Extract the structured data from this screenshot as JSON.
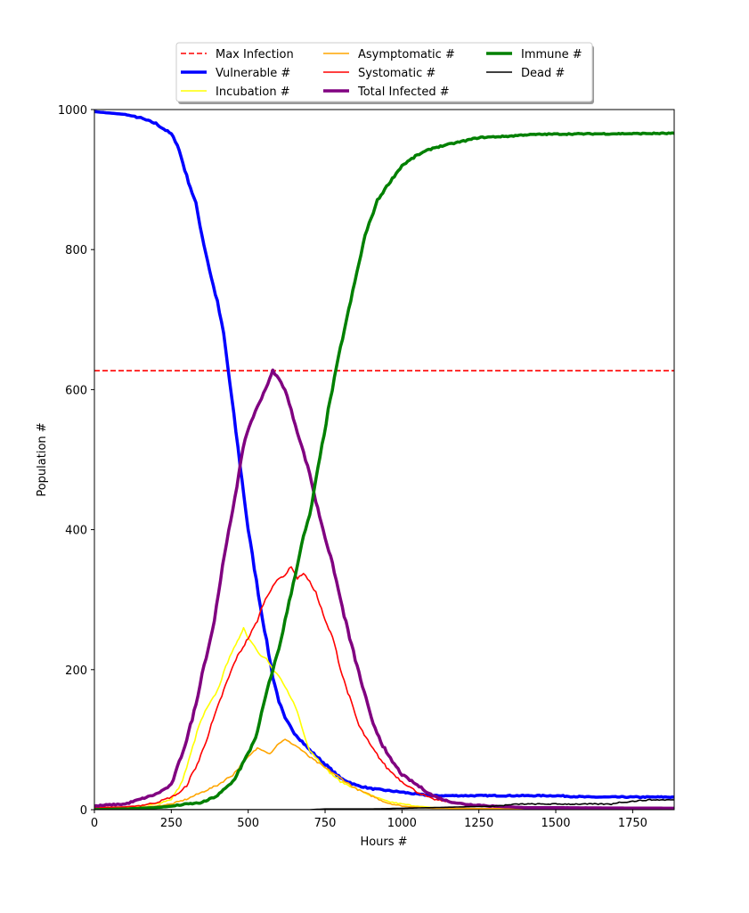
{
  "chart_data": {
    "type": "line",
    "xlabel": "Hours #",
    "ylabel": "Population #",
    "xlim": [
      0,
      1885
    ],
    "ylim": [
      0,
      1000
    ],
    "xticks": [
      0,
      250,
      500,
      750,
      1000,
      1250,
      1500,
      1750
    ],
    "yticks": [
      0,
      200,
      400,
      600,
      800,
      1000
    ],
    "grid": false,
    "legend_position": "top-center",
    "hlines": [
      {
        "name": "Max Infection",
        "y": 627,
        "color": "#ff0000",
        "style": "dashed"
      }
    ],
    "series": [
      {
        "name": "Vulnerable #",
        "color": "#0000ff",
        "width": "thick",
        "points": [
          [
            0,
            997
          ],
          [
            50,
            995
          ],
          [
            100,
            993
          ],
          [
            150,
            988
          ],
          [
            200,
            980
          ],
          [
            250,
            965
          ],
          [
            270,
            950
          ],
          [
            300,
            905
          ],
          [
            330,
            865
          ],
          [
            350,
            820
          ],
          [
            380,
            760
          ],
          [
            400,
            725
          ],
          [
            420,
            680
          ],
          [
            440,
            610
          ],
          [
            460,
            540
          ],
          [
            480,
            470
          ],
          [
            500,
            400
          ],
          [
            520,
            345
          ],
          [
            540,
            290
          ],
          [
            560,
            240
          ],
          [
            580,
            190
          ],
          [
            600,
            155
          ],
          [
            620,
            130
          ],
          [
            650,
            110
          ],
          [
            700,
            85
          ],
          [
            750,
            65
          ],
          [
            800,
            45
          ],
          [
            850,
            35
          ],
          [
            900,
            30
          ],
          [
            1000,
            25
          ],
          [
            1050,
            22
          ],
          [
            1100,
            20
          ],
          [
            1200,
            20
          ],
          [
            1500,
            20
          ],
          [
            1600,
            18
          ],
          [
            1885,
            18
          ]
        ]
      },
      {
        "name": "Incubation #",
        "color": "#ffff00",
        "width": "thin",
        "points": [
          [
            0,
            2
          ],
          [
            100,
            3
          ],
          [
            200,
            8
          ],
          [
            250,
            15
          ],
          [
            280,
            35
          ],
          [
            300,
            60
          ],
          [
            320,
            90
          ],
          [
            340,
            120
          ],
          [
            360,
            140
          ],
          [
            380,
            155
          ],
          [
            400,
            170
          ],
          [
            420,
            195
          ],
          [
            440,
            220
          ],
          [
            460,
            235
          ],
          [
            475,
            250
          ],
          [
            485,
            260
          ],
          [
            500,
            245
          ],
          [
            520,
            235
          ],
          [
            540,
            220
          ],
          [
            560,
            215
          ],
          [
            580,
            200
          ],
          [
            600,
            190
          ],
          [
            620,
            175
          ],
          [
            640,
            160
          ],
          [
            660,
            140
          ],
          [
            680,
            110
          ],
          [
            700,
            85
          ],
          [
            720,
            75
          ],
          [
            740,
            65
          ],
          [
            760,
            55
          ],
          [
            800,
            40
          ],
          [
            850,
            30
          ],
          [
            900,
            20
          ],
          [
            950,
            12
          ],
          [
            1000,
            8
          ],
          [
            1050,
            5
          ],
          [
            1100,
            3
          ],
          [
            1200,
            1
          ],
          [
            1885,
            0
          ]
        ]
      },
      {
        "name": "Asymptomatic #",
        "color": "#ffa500",
        "width": "thin",
        "points": [
          [
            0,
            1
          ],
          [
            100,
            2
          ],
          [
            200,
            5
          ],
          [
            250,
            8
          ],
          [
            300,
            15
          ],
          [
            350,
            25
          ],
          [
            400,
            35
          ],
          [
            450,
            50
          ],
          [
            500,
            75
          ],
          [
            530,
            88
          ],
          [
            550,
            85
          ],
          [
            570,
            80
          ],
          [
            600,
            95
          ],
          [
            620,
            100
          ],
          [
            640,
            95
          ],
          [
            660,
            90
          ],
          [
            700,
            75
          ],
          [
            750,
            60
          ],
          [
            800,
            45
          ],
          [
            850,
            30
          ],
          [
            900,
            20
          ],
          [
            950,
            10
          ],
          [
            1000,
            5
          ],
          [
            1100,
            2
          ],
          [
            1885,
            0
          ]
        ]
      },
      {
        "name": "Systomatic #",
        "color": "#ff0000",
        "width": "thin",
        "points": [
          [
            0,
            3
          ],
          [
            100,
            4
          ],
          [
            150,
            6
          ],
          [
            200,
            10
          ],
          [
            250,
            18
          ],
          [
            280,
            25
          ],
          [
            300,
            35
          ],
          [
            340,
            70
          ],
          [
            380,
            120
          ],
          [
            420,
            170
          ],
          [
            460,
            215
          ],
          [
            500,
            245
          ],
          [
            530,
            270
          ],
          [
            550,
            295
          ],
          [
            580,
            320
          ],
          [
            600,
            330
          ],
          [
            620,
            335
          ],
          [
            640,
            348
          ],
          [
            660,
            330
          ],
          [
            680,
            338
          ],
          [
            700,
            325
          ],
          [
            720,
            310
          ],
          [
            750,
            270
          ],
          [
            780,
            240
          ],
          [
            800,
            200
          ],
          [
            830,
            160
          ],
          [
            860,
            120
          ],
          [
            900,
            90
          ],
          [
            950,
            60
          ],
          [
            1000,
            40
          ],
          [
            1050,
            25
          ],
          [
            1100,
            15
          ],
          [
            1200,
            8
          ],
          [
            1300,
            4
          ],
          [
            1500,
            2
          ],
          [
            1885,
            1
          ]
        ]
      },
      {
        "name": "Total Infected #",
        "color": "#800080",
        "width": "thick",
        "points": [
          [
            0,
            5
          ],
          [
            50,
            7
          ],
          [
            100,
            8
          ],
          [
            150,
            15
          ],
          [
            200,
            22
          ],
          [
            250,
            35
          ],
          [
            270,
            60
          ],
          [
            300,
            100
          ],
          [
            330,
            150
          ],
          [
            350,
            195
          ],
          [
            370,
            230
          ],
          [
            390,
            270
          ],
          [
            410,
            330
          ],
          [
            430,
            380
          ],
          [
            450,
            430
          ],
          [
            470,
            480
          ],
          [
            490,
            530
          ],
          [
            510,
            555
          ],
          [
            530,
            575
          ],
          [
            550,
            595
          ],
          [
            570,
            615
          ],
          [
            580,
            627
          ],
          [
            600,
            615
          ],
          [
            620,
            600
          ],
          [
            640,
            570
          ],
          [
            660,
            540
          ],
          [
            680,
            510
          ],
          [
            700,
            480
          ],
          [
            720,
            440
          ],
          [
            750,
            390
          ],
          [
            780,
            340
          ],
          [
            800,
            300
          ],
          [
            830,
            245
          ],
          [
            860,
            195
          ],
          [
            900,
            130
          ],
          [
            950,
            80
          ],
          [
            1000,
            50
          ],
          [
            1050,
            35
          ],
          [
            1100,
            20
          ],
          [
            1150,
            12
          ],
          [
            1200,
            8
          ],
          [
            1300,
            5
          ],
          [
            1400,
            3
          ],
          [
            1885,
            2
          ]
        ]
      },
      {
        "name": "Immune #",
        "color": "#008000",
        "width": "thick",
        "points": [
          [
            0,
            0
          ],
          [
            100,
            1
          ],
          [
            200,
            3
          ],
          [
            250,
            5
          ],
          [
            300,
            8
          ],
          [
            350,
            10
          ],
          [
            400,
            20
          ],
          [
            450,
            40
          ],
          [
            500,
            80
          ],
          [
            530,
            110
          ],
          [
            550,
            150
          ],
          [
            580,
            200
          ],
          [
            600,
            230
          ],
          [
            620,
            270
          ],
          [
            640,
            310
          ],
          [
            660,
            350
          ],
          [
            680,
            390
          ],
          [
            700,
            420
          ],
          [
            720,
            470
          ],
          [
            740,
            520
          ],
          [
            760,
            570
          ],
          [
            780,
            615
          ],
          [
            800,
            660
          ],
          [
            820,
            700
          ],
          [
            840,
            740
          ],
          [
            860,
            780
          ],
          [
            880,
            820
          ],
          [
            900,
            845
          ],
          [
            920,
            870
          ],
          [
            950,
            890
          ],
          [
            975,
            905
          ],
          [
            1000,
            920
          ],
          [
            1050,
            935
          ],
          [
            1100,
            945
          ],
          [
            1150,
            950
          ],
          [
            1200,
            955
          ],
          [
            1250,
            960
          ],
          [
            1350,
            962
          ],
          [
            1400,
            964
          ],
          [
            1500,
            965
          ],
          [
            1885,
            966
          ]
        ]
      },
      {
        "name": "Dead #",
        "color": "#000000",
        "width": "thin",
        "points": [
          [
            0,
            0
          ],
          [
            700,
            0
          ],
          [
            750,
            1
          ],
          [
            900,
            1
          ],
          [
            1000,
            2
          ],
          [
            1100,
            3
          ],
          [
            1200,
            4
          ],
          [
            1300,
            5
          ],
          [
            1380,
            8
          ],
          [
            1500,
            8
          ],
          [
            1680,
            8
          ],
          [
            1700,
            10
          ],
          [
            1750,
            12
          ],
          [
            1800,
            14
          ],
          [
            1885,
            14
          ]
        ]
      }
    ],
    "legend": {
      "columns": [
        [
          "Max Infection",
          "Vulnerable #",
          "Incubation #"
        ],
        [
          "Asymptomatic #",
          "Systomatic #",
          "Total Infected #"
        ],
        [
          "Immune #",
          "Dead #"
        ]
      ]
    }
  }
}
